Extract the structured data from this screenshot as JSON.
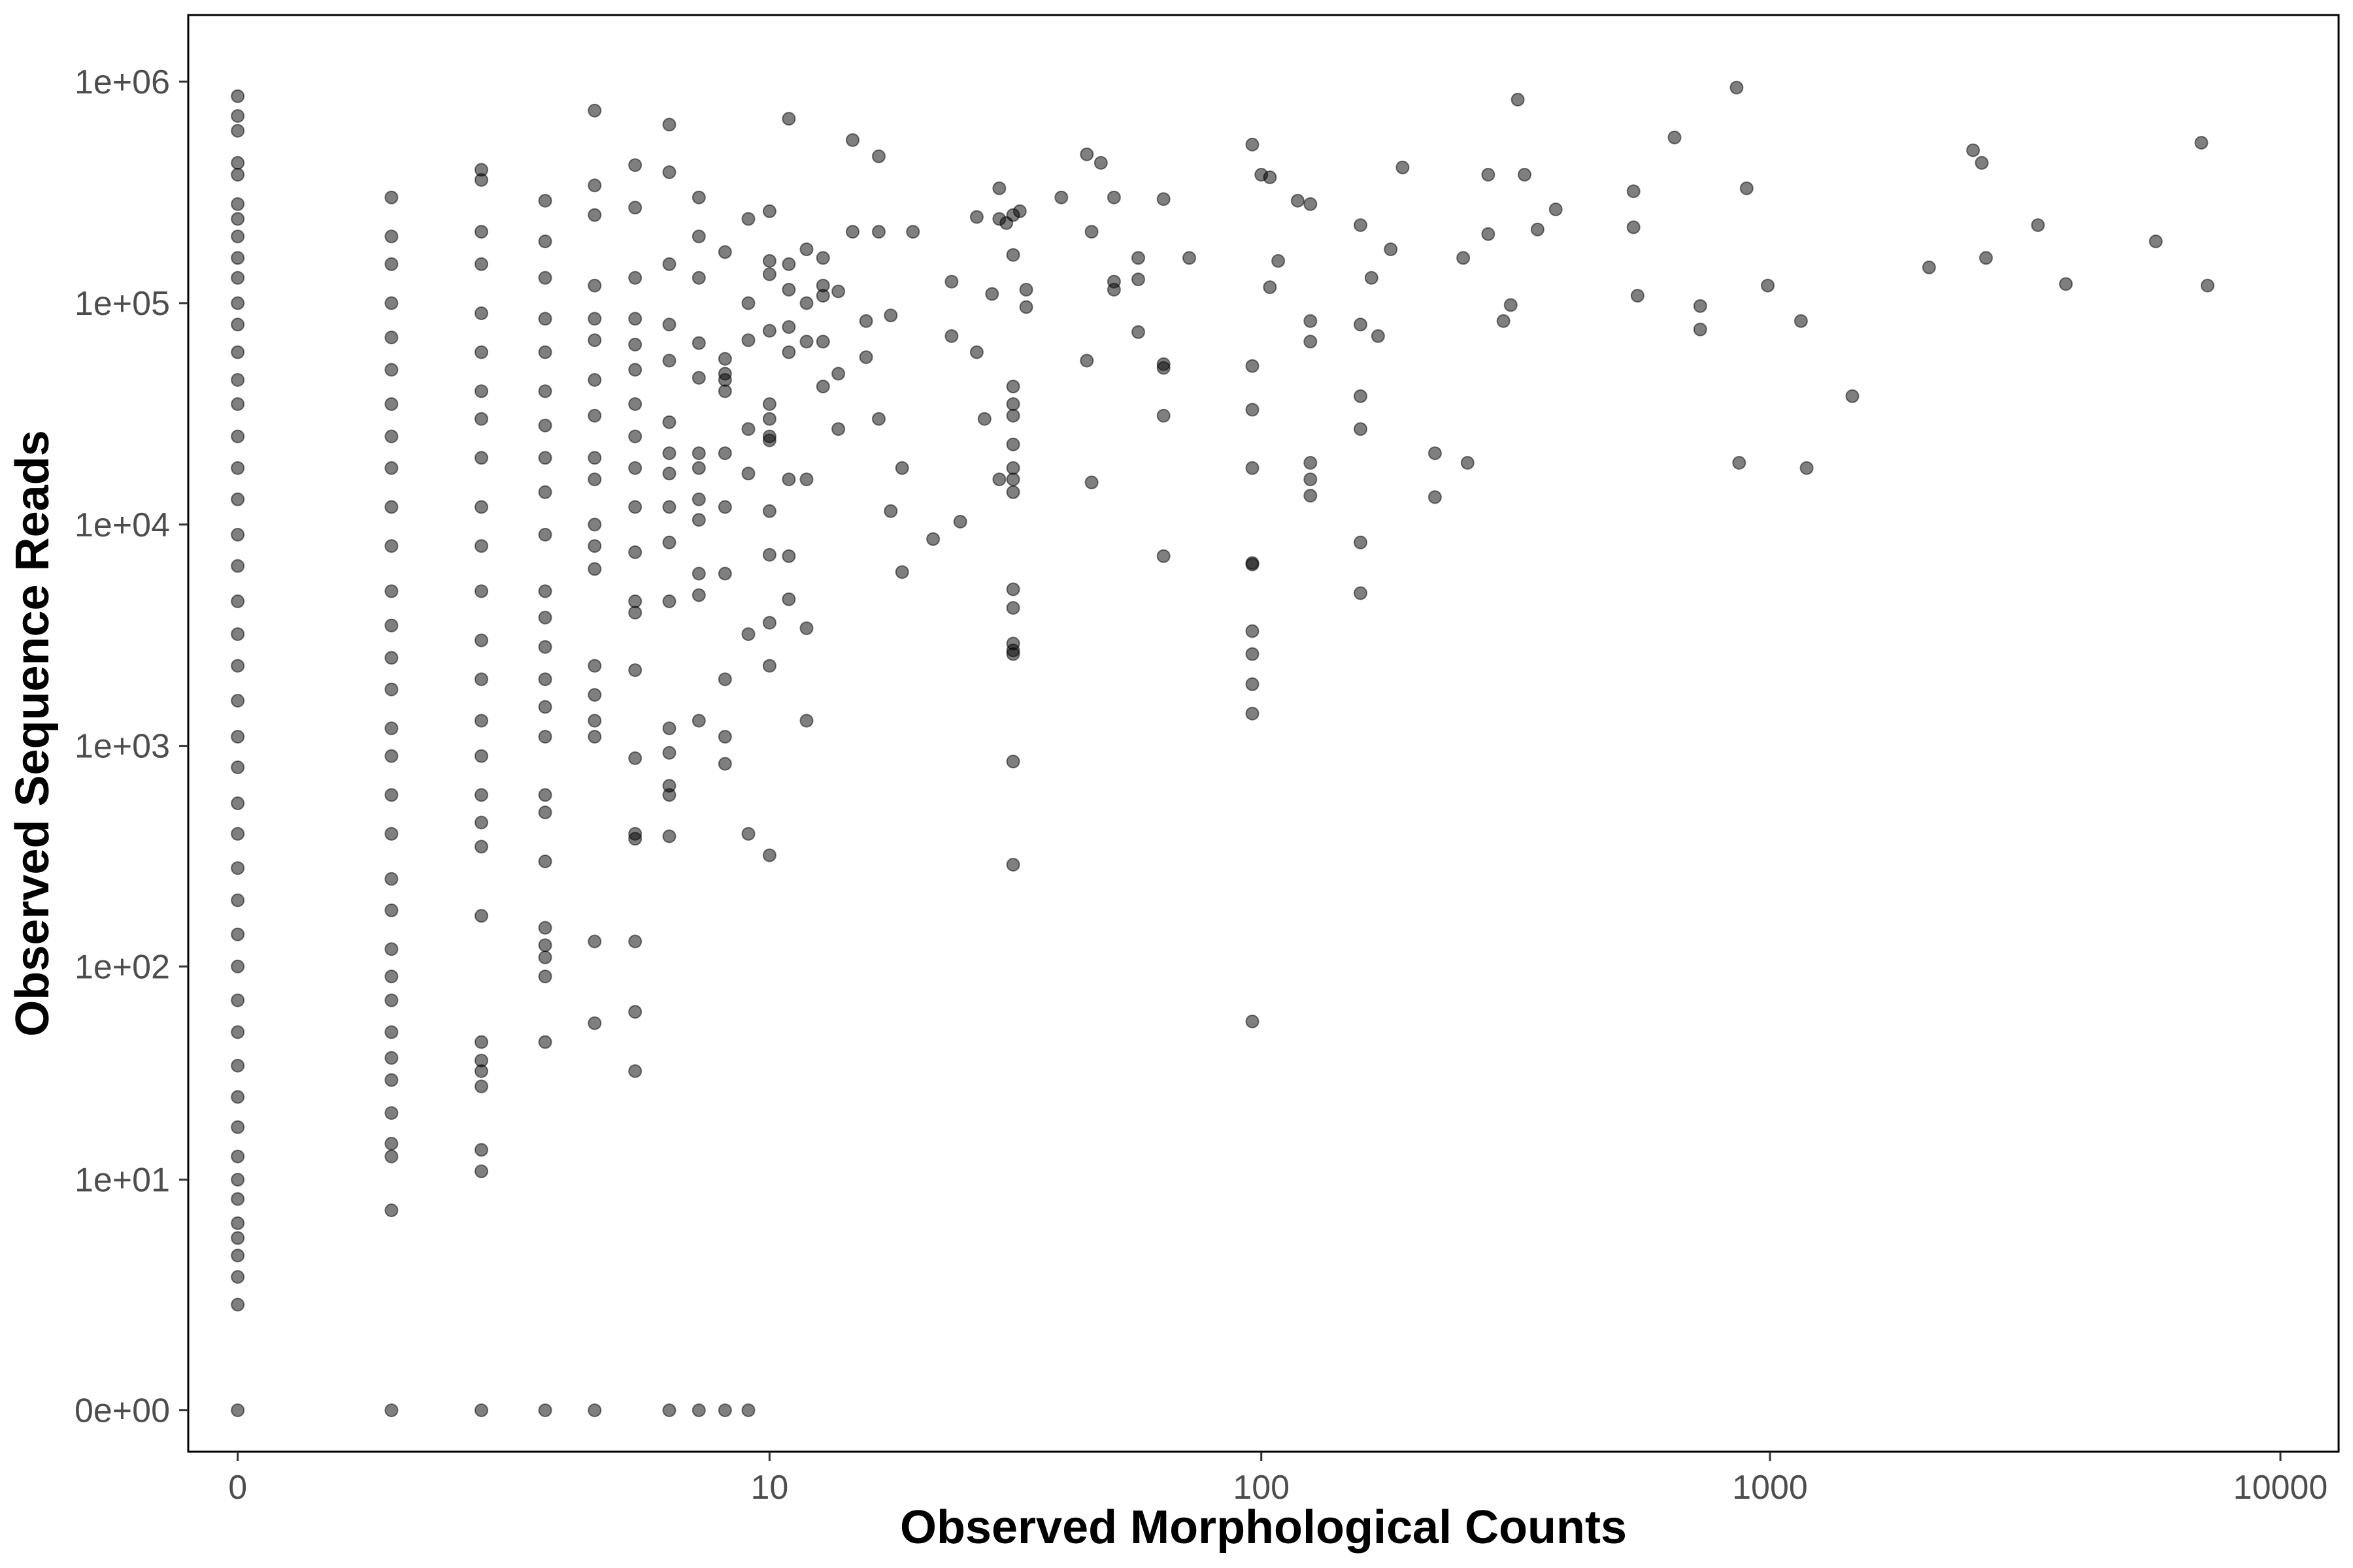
{
  "chart_data": {
    "type": "scatter",
    "title": "",
    "xlabel": "Observed Morphological Counts",
    "ylabel": "Observed Sequence Reads",
    "x_scale": "log1p",
    "y_scale": "log1p",
    "xlim": [
      -0.2,
      13000
    ],
    "ylim": [
      -0.35,
      2000000
    ],
    "grid": false,
    "legend": "none",
    "point_color": "#000000",
    "point_alpha": 0.5,
    "x_ticks": [
      {
        "value": 0,
        "label": "0"
      },
      {
        "value": 10,
        "label": "10"
      },
      {
        "value": 100,
        "label": "100"
      },
      {
        "value": 1000,
        "label": "1000"
      },
      {
        "value": 10000,
        "label": "10000"
      }
    ],
    "y_ticks": [
      {
        "value": 0,
        "label": "0e+00"
      },
      {
        "value": 10,
        "label": "1e+01"
      },
      {
        "value": 100,
        "label": "1e+02"
      },
      {
        "value": 1000,
        "label": "1e+03"
      },
      {
        "value": 10000,
        "label": "1e+04"
      },
      {
        "value": 100000,
        "label": "1e+05"
      },
      {
        "value": 1000000,
        "label": "1e+06"
      }
    ],
    "points": [
      [
        0,
        860000
      ],
      [
        0,
        700000
      ],
      [
        0,
        600000
      ],
      [
        0,
        430000
      ],
      [
        0,
        380000
      ],
      [
        0,
        280000
      ],
      [
        0,
        240000
      ],
      [
        0,
        200000
      ],
      [
        0,
        160000
      ],
      [
        0,
        130000
      ],
      [
        0,
        100000
      ],
      [
        0,
        80000
      ],
      [
        0,
        60000
      ],
      [
        0,
        45000
      ],
      [
        0,
        35000
      ],
      [
        0,
        25000
      ],
      [
        0,
        18000
      ],
      [
        0,
        13000
      ],
      [
        0,
        9000
      ],
      [
        0,
        6500
      ],
      [
        0,
        4500
      ],
      [
        0,
        3200
      ],
      [
        0,
        2300
      ],
      [
        0,
        1600
      ],
      [
        0,
        1100
      ],
      [
        0,
        800
      ],
      [
        0,
        550
      ],
      [
        0,
        400
      ],
      [
        0,
        280
      ],
      [
        0,
        200
      ],
      [
        0,
        140
      ],
      [
        0,
        100
      ],
      [
        0,
        70
      ],
      [
        0,
        50
      ],
      [
        0,
        35
      ],
      [
        0,
        25
      ],
      [
        0,
        18
      ],
      [
        0,
        13
      ],
      [
        0,
        10
      ],
      [
        0,
        8
      ],
      [
        0,
        6
      ],
      [
        0,
        5
      ],
      [
        0,
        4
      ],
      [
        0,
        3
      ],
      [
        0,
        2
      ],
      [
        0,
        0
      ],
      [
        1,
        300000
      ],
      [
        1,
        200000
      ],
      [
        1,
        150000
      ],
      [
        1,
        100000
      ],
      [
        1,
        70000
      ],
      [
        1,
        50000
      ],
      [
        1,
        35000
      ],
      [
        1,
        25000
      ],
      [
        1,
        18000
      ],
      [
        1,
        12000
      ],
      [
        1,
        8000
      ],
      [
        1,
        5000
      ],
      [
        1,
        3500
      ],
      [
        1,
        2500
      ],
      [
        1,
        1800
      ],
      [
        1,
        1200
      ],
      [
        1,
        900
      ],
      [
        1,
        600
      ],
      [
        1,
        400
      ],
      [
        1,
        250
      ],
      [
        1,
        180
      ],
      [
        1,
        120
      ],
      [
        1,
        90
      ],
      [
        1,
        70
      ],
      [
        1,
        50
      ],
      [
        1,
        38
      ],
      [
        1,
        30
      ],
      [
        1,
        21
      ],
      [
        1,
        15
      ],
      [
        1,
        13
      ],
      [
        1,
        7
      ],
      [
        1,
        0
      ],
      [
        2,
        400000
      ],
      [
        2,
        360000
      ],
      [
        2,
        210000
      ],
      [
        2,
        150000
      ],
      [
        2,
        90000
      ],
      [
        2,
        60000
      ],
      [
        2,
        40000
      ],
      [
        2,
        30000
      ],
      [
        2,
        20000
      ],
      [
        2,
        12000
      ],
      [
        2,
        8000
      ],
      [
        2,
        5000
      ],
      [
        2,
        3000
      ],
      [
        2,
        2000
      ],
      [
        2,
        1300
      ],
      [
        2,
        900
      ],
      [
        2,
        600
      ],
      [
        2,
        450
      ],
      [
        2,
        350
      ],
      [
        2,
        170
      ],
      [
        2,
        45
      ],
      [
        2,
        37
      ],
      [
        2,
        33
      ],
      [
        2,
        28
      ],
      [
        2,
        14
      ],
      [
        2,
        11
      ],
      [
        2,
        0
      ],
      [
        3,
        290000
      ],
      [
        3,
        190000
      ],
      [
        3,
        130000
      ],
      [
        3,
        85000
      ],
      [
        3,
        60000
      ],
      [
        3,
        40000
      ],
      [
        3,
        28000
      ],
      [
        3,
        20000
      ],
      [
        3,
        14000
      ],
      [
        3,
        9000
      ],
      [
        3,
        5000
      ],
      [
        3,
        3800
      ],
      [
        3,
        2800
      ],
      [
        3,
        2000
      ],
      [
        3,
        1500
      ],
      [
        3,
        1100
      ],
      [
        3,
        600
      ],
      [
        3,
        500
      ],
      [
        3,
        300
      ],
      [
        3,
        150
      ],
      [
        3,
        125
      ],
      [
        3,
        110
      ],
      [
        3,
        90
      ],
      [
        3,
        45
      ],
      [
        3,
        0
      ],
      [
        4,
        740000
      ],
      [
        4,
        340000
      ],
      [
        4,
        250000
      ],
      [
        4,
        120000
      ],
      [
        4,
        85000
      ],
      [
        4,
        68000
      ],
      [
        4,
        45000
      ],
      [
        4,
        31000
      ],
      [
        4,
        20000
      ],
      [
        4,
        16000
      ],
      [
        4,
        10000
      ],
      [
        4,
        8000
      ],
      [
        4,
        6300
      ],
      [
        4,
        2300
      ],
      [
        4,
        1700
      ],
      [
        4,
        1300
      ],
      [
        4,
        1100
      ],
      [
        4,
        130
      ],
      [
        4,
        55
      ],
      [
        4,
        0
      ],
      [
        5,
        420000
      ],
      [
        5,
        270000
      ],
      [
        5,
        130000
      ],
      [
        5,
        85000
      ],
      [
        5,
        65000
      ],
      [
        5,
        50000
      ],
      [
        5,
        35000
      ],
      [
        5,
        25000
      ],
      [
        5,
        18000
      ],
      [
        5,
        12000
      ],
      [
        5,
        7500
      ],
      [
        5,
        4500
      ],
      [
        5,
        4000
      ],
      [
        5,
        2200
      ],
      [
        5,
        880
      ],
      [
        5,
        400
      ],
      [
        5,
        380
      ],
      [
        5,
        130
      ],
      [
        5,
        62
      ],
      [
        5,
        33
      ],
      [
        6,
        640000
      ],
      [
        6,
        390000
      ],
      [
        6,
        150000
      ],
      [
        6,
        80000
      ],
      [
        6,
        55000
      ],
      [
        6,
        29000
      ],
      [
        6,
        21000
      ],
      [
        6,
        17000
      ],
      [
        6,
        12000
      ],
      [
        6,
        8300
      ],
      [
        6,
        4500
      ],
      [
        6,
        1200
      ],
      [
        6,
        930
      ],
      [
        6,
        660
      ],
      [
        6,
        600
      ],
      [
        6,
        390
      ],
      [
        6,
        0
      ],
      [
        7,
        300000
      ],
      [
        7,
        200000
      ],
      [
        7,
        130000
      ],
      [
        7,
        66000
      ],
      [
        7,
        46000
      ],
      [
        7,
        21000
      ],
      [
        7,
        18000
      ],
      [
        7,
        13000
      ],
      [
        7,
        10500
      ],
      [
        7,
        6000
      ],
      [
        7,
        4800
      ],
      [
        7,
        1300
      ],
      [
        7,
        0
      ],
      [
        8,
        170000
      ],
      [
        8,
        56000
      ],
      [
        8,
        48000
      ],
      [
        8,
        45000
      ],
      [
        8,
        40000
      ],
      [
        8,
        21000
      ],
      [
        8,
        12000
      ],
      [
        8,
        6000
      ],
      [
        8,
        2000
      ],
      [
        8,
        1100
      ],
      [
        8,
        830
      ],
      [
        8,
        0
      ],
      [
        9,
        240000
      ],
      [
        9,
        100000
      ],
      [
        9,
        68000
      ],
      [
        9,
        27000
      ],
      [
        9,
        17000
      ],
      [
        9,
        3200
      ],
      [
        9,
        400
      ],
      [
        9,
        0
      ],
      [
        10,
        260000
      ],
      [
        10,
        155000
      ],
      [
        10,
        135000
      ],
      [
        10,
        75000
      ],
      [
        10,
        35000
      ],
      [
        10,
        30000
      ],
      [
        10,
        25000
      ],
      [
        10,
        24000
      ],
      [
        10,
        11500
      ],
      [
        10,
        7300
      ],
      [
        10,
        3600
      ],
      [
        10,
        2300
      ],
      [
        10,
        320
      ],
      [
        11,
        680000
      ],
      [
        11,
        150000
      ],
      [
        11,
        115000
      ],
      [
        11,
        78000
      ],
      [
        11,
        60000
      ],
      [
        11,
        16000
      ],
      [
        11,
        7200
      ],
      [
        11,
        4600
      ],
      [
        12,
        175000
      ],
      [
        12,
        100000
      ],
      [
        12,
        67000
      ],
      [
        12,
        16000
      ],
      [
        12,
        3400
      ],
      [
        12,
        1300
      ],
      [
        13,
        160000
      ],
      [
        13,
        120000
      ],
      [
        13,
        108000
      ],
      [
        13,
        67000
      ],
      [
        13,
        42000
      ],
      [
        14,
        113000
      ],
      [
        14,
        48000
      ],
      [
        14,
        27000
      ],
      [
        15,
        545000
      ],
      [
        15,
        210000
      ],
      [
        16,
        83000
      ],
      [
        16,
        57000
      ],
      [
        17,
        460000
      ],
      [
        17,
        210000
      ],
      [
        17,
        30000
      ],
      [
        18,
        88000
      ],
      [
        18,
        11500
      ],
      [
        19,
        18000
      ],
      [
        19,
        6100
      ],
      [
        20,
        210000
      ],
      [
        22,
        8600
      ],
      [
        24,
        125000
      ],
      [
        24,
        71000
      ],
      [
        25,
        10300
      ],
      [
        27,
        245000
      ],
      [
        27,
        60000
      ],
      [
        28,
        30000
      ],
      [
        29,
        110000
      ],
      [
        30,
        330000
      ],
      [
        30,
        240000
      ],
      [
        30,
        16000
      ],
      [
        31,
        230000
      ],
      [
        32,
        250000
      ],
      [
        32,
        165000
      ],
      [
        32,
        42000
      ],
      [
        32,
        35000
      ],
      [
        32,
        31000
      ],
      [
        32,
        23000
      ],
      [
        32,
        18000
      ],
      [
        32,
        16000
      ],
      [
        32,
        14000
      ],
      [
        32,
        5100
      ],
      [
        32,
        4200
      ],
      [
        32,
        2900
      ],
      [
        32,
        2700
      ],
      [
        32,
        2600
      ],
      [
        32,
        850
      ],
      [
        32,
        290
      ],
      [
        33,
        260000
      ],
      [
        34,
        115000
      ],
      [
        34,
        96000
      ],
      [
        40,
        300000
      ],
      [
        45,
        470000
      ],
      [
        45,
        55000
      ],
      [
        46,
        210000
      ],
      [
        46,
        15500
      ],
      [
        48,
        430000
      ],
      [
        51,
        300000
      ],
      [
        51,
        125000
      ],
      [
        51,
        115000
      ],
      [
        57,
        160000
      ],
      [
        57,
        128000
      ],
      [
        57,
        74000
      ],
      [
        64,
        295000
      ],
      [
        64,
        53000
      ],
      [
        64,
        51000
      ],
      [
        64,
        31000
      ],
      [
        64,
        7200
      ],
      [
        72,
        160000
      ],
      [
        96,
        520000
      ],
      [
        96,
        52000
      ],
      [
        96,
        33000
      ],
      [
        96,
        18000
      ],
      [
        96,
        6700
      ],
      [
        96,
        6600
      ],
      [
        96,
        3300
      ],
      [
        96,
        2600
      ],
      [
        96,
        1900
      ],
      [
        96,
        1400
      ],
      [
        96,
        56
      ],
      [
        100,
        380000
      ],
      [
        104,
        370000
      ],
      [
        104,
        118000
      ],
      [
        108,
        155000
      ],
      [
        118,
        290000
      ],
      [
        125,
        280000
      ],
      [
        125,
        83000
      ],
      [
        125,
        67000
      ],
      [
        125,
        19000
      ],
      [
        125,
        16000
      ],
      [
        125,
        13500
      ],
      [
        157,
        225000
      ],
      [
        157,
        80000
      ],
      [
        157,
        38000
      ],
      [
        157,
        27000
      ],
      [
        157,
        8300
      ],
      [
        157,
        4900
      ],
      [
        165,
        130000
      ],
      [
        170,
        71000
      ],
      [
        180,
        175000
      ],
      [
        190,
        410000
      ],
      [
        220,
        21000
      ],
      [
        220,
        13300
      ],
      [
        250,
        160000
      ],
      [
        255,
        19000
      ],
      [
        280,
        380000
      ],
      [
        280,
        205000
      ],
      [
        300,
        83000
      ],
      [
        310,
        98000
      ],
      [
        320,
        830000
      ],
      [
        330,
        380000
      ],
      [
        350,
        215000
      ],
      [
        380,
        265000
      ],
      [
        540,
        320000
      ],
      [
        540,
        220000
      ],
      [
        550,
        108000
      ],
      [
        650,
        560000
      ],
      [
        730,
        97000
      ],
      [
        730,
        76000
      ],
      [
        860,
        940000
      ],
      [
        870,
        19000
      ],
      [
        900,
        330000
      ],
      [
        990,
        120000
      ],
      [
        1150,
        83000
      ],
      [
        1180,
        18000
      ],
      [
        1450,
        38000
      ],
      [
        2050,
        145000
      ],
      [
        2500,
        490000
      ],
      [
        2600,
        430000
      ],
      [
        2650,
        160000
      ],
      [
        3350,
        225000
      ],
      [
        3800,
        122000
      ],
      [
        5700,
        190000
      ],
      [
        7000,
        530000
      ],
      [
        7200,
        120000
      ]
    ]
  }
}
